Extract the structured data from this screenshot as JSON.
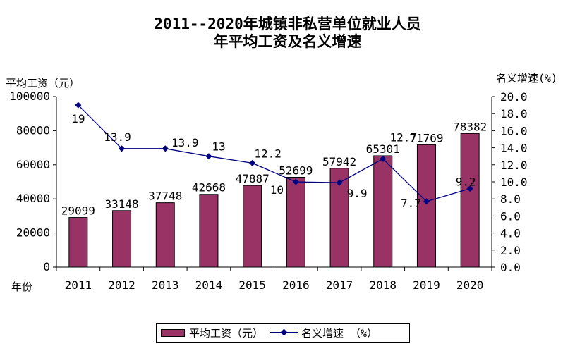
{
  "title_line1": "2011--2020年城镇非私营单位就业人员",
  "title_line2": "年平均工资及名义增速",
  "y_left_name": "平均工资（元）",
  "y_right_name": "名义增速(%)",
  "x_name": "年份",
  "legend": {
    "bar": "平均工资（元）",
    "line": "名义增速 （%）"
  },
  "colors": {
    "bar": "#993366",
    "line": "#000080",
    "axis": "#000000"
  },
  "chart_data": {
    "type": "bar",
    "categories": [
      "2011",
      "2012",
      "2013",
      "2014",
      "2015",
      "2016",
      "2017",
      "2018",
      "2019",
      "2020"
    ],
    "series": [
      {
        "name": "平均工资（元）",
        "type": "bar",
        "axis": "left",
        "values": [
          29099,
          33148,
          37748,
          42668,
          47887,
          52699,
          57942,
          65301,
          71769,
          78382
        ]
      },
      {
        "name": "名义增速 （%）",
        "type": "line",
        "axis": "right",
        "values": [
          19,
          13.9,
          13.9,
          13,
          12.2,
          10,
          9.9,
          12.7,
          7.7,
          9.2
        ]
      }
    ],
    "y_left": {
      "min": 0,
      "max": 100000,
      "ticks": [
        "0",
        "20000",
        "40000",
        "60000",
        "80000",
        "100000"
      ]
    },
    "y_right": {
      "min": 0,
      "max": 20,
      "ticks": [
        "0.0",
        "2.0",
        "4.0",
        "6.0",
        "8.0",
        "10.0",
        "12.0",
        "14.0",
        "16.0",
        "18.0",
        "20.0"
      ]
    },
    "bar_labels": [
      "29099",
      "33148",
      "37748",
      "42668",
      "47887",
      "52699",
      "57942",
      "65301",
      "71769",
      "78382"
    ],
    "line_labels": [
      "19",
      "13.9",
      "13.9",
      "13",
      "12.2",
      "10",
      "9.9",
      "12.7",
      "7.7",
      "9.2"
    ],
    "legend_position": "bottom",
    "grid": false
  }
}
